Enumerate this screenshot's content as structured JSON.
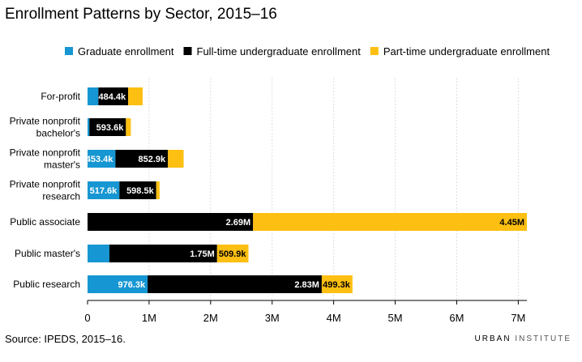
{
  "title": "Enrollment Patterns by Sector, 2015–16",
  "source": "Source: IPEDS, 2015–16.",
  "brand": {
    "strong": "URBAN",
    "light": "INSTITUTE"
  },
  "colors": {
    "graduate": "#1696d2",
    "fulltime": "#000000",
    "parttime": "#fdbf11",
    "grid": "#dedede",
    "axis": "#000000"
  },
  "chart_data": {
    "type": "bar",
    "orientation": "horizontal",
    "stacked": true,
    "categories": [
      [
        "For-profit"
      ],
      [
        "Private nonprofit",
        "bachelor's"
      ],
      [
        "Private nonprofit",
        "master's"
      ],
      [
        "Private nonprofit",
        "research"
      ],
      [
        "Public associate"
      ],
      [
        "Public master's"
      ],
      [
        "Public research"
      ]
    ],
    "series": [
      {
        "name": "Graduate enrollment",
        "color": "#1696d2",
        "values": [
          176000,
          30000,
          453400,
          517600,
          0,
          355000,
          976300
        ],
        "labels": [
          "",
          "",
          "453.4k",
          "517.6k",
          "",
          "",
          "976.3k"
        ],
        "label_color": "#ffffff"
      },
      {
        "name": "Full-time undergraduate enrollment",
        "color": "#000000",
        "values": [
          484400,
          593600,
          852900,
          598500,
          2690000,
          1750000,
          2830000
        ],
        "labels": [
          "484.4k",
          "593.6k",
          "852.9k",
          "598.5k",
          "2.69M",
          "1.75M",
          "2.83M"
        ],
        "label_color": "#ffffff"
      },
      {
        "name": "Part-time undergraduate enrollment",
        "color": "#fdbf11",
        "values": [
          235000,
          80000,
          255000,
          55000,
          4450000,
          509900,
          499300
        ],
        "labels": [
          "",
          "",
          "",
          "",
          "4.45M",
          "509.9k",
          "499.3k"
        ],
        "label_color": "#000000"
      }
    ],
    "x_ticks": [
      0,
      1000000,
      2000000,
      3000000,
      4000000,
      5000000,
      6000000,
      7000000
    ],
    "x_tick_labels": [
      "0",
      "1M",
      "2M",
      "3M",
      "4M",
      "5M",
      "6M",
      "7M"
    ],
    "xlim": [
      0,
      7140000
    ],
    "grid": true,
    "legend_position": "top",
    "xlabel": "",
    "ylabel": ""
  }
}
